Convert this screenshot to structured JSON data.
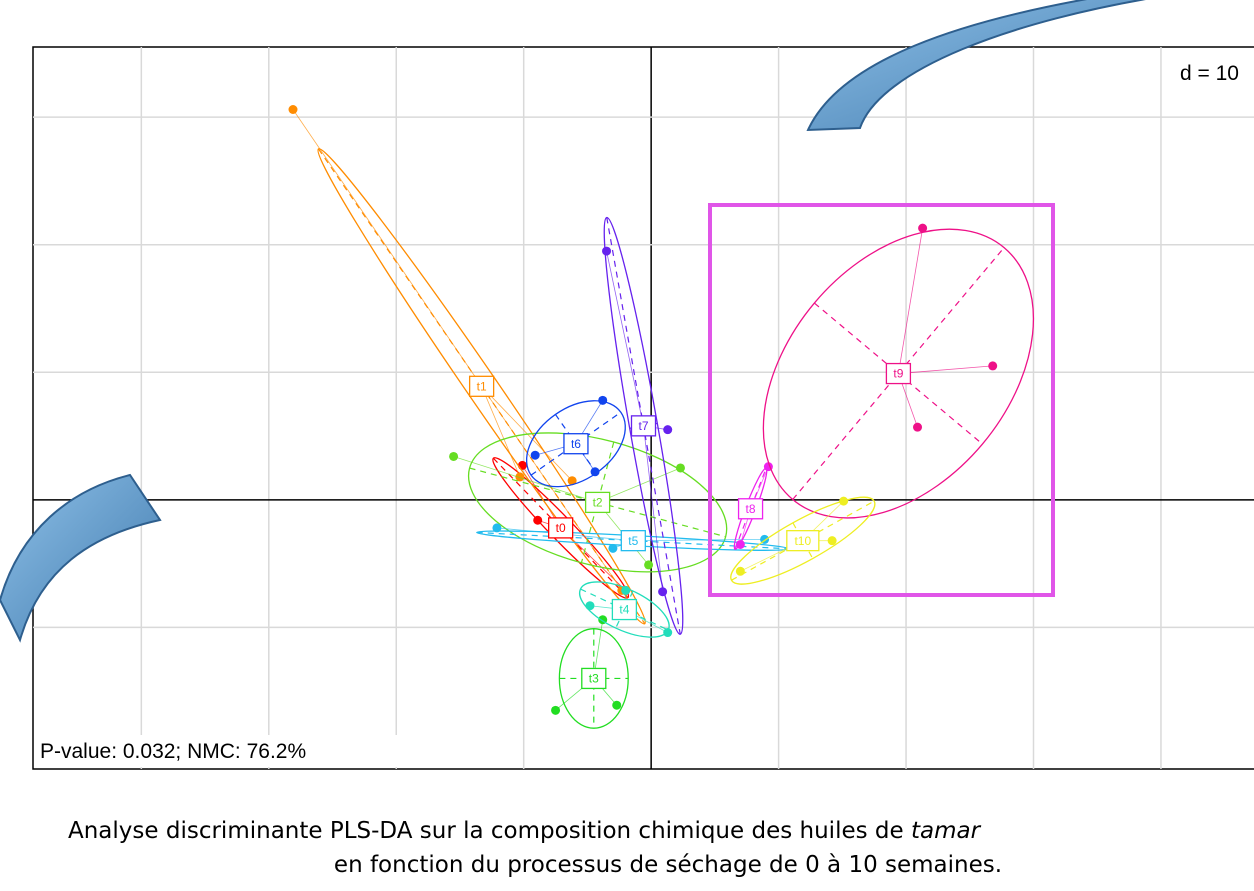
{
  "chart_data": {
    "type": "scatter",
    "grid_label": "d = 10",
    "annotation": "P-value: 0.032; NMC: 76.2%",
    "caption_line1": "Analyse discriminante PLS-DA sur la composition chimique des huiles de ",
    "caption_species": "tamar",
    "caption_line2": "en fonction du processus de séchage de 0 à 10 semaines.",
    "xlim": [
      -48.5,
      47.3
    ],
    "ylim": [
      -21.1,
      35.5
    ],
    "grid_x": [
      -40,
      -30,
      -20,
      -10,
      0,
      10,
      20,
      30,
      40
    ],
    "grid_y": [
      -10,
      0,
      10,
      20,
      30
    ],
    "groups": [
      {
        "name": "t0",
        "color": "#ff0000",
        "center": [
          -7.1,
          -2.2
        ],
        "ellipse": {
          "rx": 7.6,
          "ry": 0.9,
          "angle": -46
        },
        "points": [
          [
            -10.1,
            2.7
          ],
          [
            -8.9,
            -1.6
          ],
          [
            -2.0,
            -7.1
          ]
        ]
      },
      {
        "name": "t1",
        "color": "#ff8c00",
        "center": [
          -13.3,
          8.9
        ],
        "ellipse": {
          "rx": 22.6,
          "ry": 1.2,
          "angle": -55.5
        },
        "points": [
          [
            -28.1,
            30.6
          ],
          [
            -10.3,
            1.8
          ],
          [
            -6.2,
            1.5
          ],
          [
            -2.3,
            -7.1
          ]
        ]
      },
      {
        "name": "t2",
        "color": "#66dd22",
        "center": [
          -4.2,
          -0.2
        ],
        "ellipse": {
          "rx": 10.4,
          "ry": 4.9,
          "angle": -15
        },
        "points": [
          [
            -15.5,
            3.4
          ],
          [
            2.3,
            2.5
          ],
          [
            -0.2,
            -5.1
          ]
        ]
      },
      {
        "name": "t3",
        "color": "#22dd22",
        "center": [
          -4.5,
          -14.0
        ],
        "ellipse": {
          "rx": 2.7,
          "ry": 3.9,
          "angle": 0
        },
        "points": [
          [
            -7.5,
            -16.5
          ],
          [
            -2.7,
            -16.1
          ],
          [
            -3.8,
            -9.4
          ]
        ]
      },
      {
        "name": "t4",
        "color": "#22ddbb",
        "center": [
          -2.1,
          -8.6
        ],
        "ellipse": {
          "rx": 3.8,
          "ry": 1.6,
          "angle": -25
        },
        "points": [
          [
            -4.8,
            -8.3
          ],
          [
            1.3,
            -10.4
          ],
          [
            -2.0,
            -7.1
          ]
        ]
      },
      {
        "name": "t5",
        "color": "#22bbee",
        "center": [
          -1.4,
          -3.2
        ],
        "ellipse": {
          "rx": 12.3,
          "ry": 0.4,
          "angle": -3
        },
        "points": [
          [
            -12.1,
            -2.2
          ],
          [
            8.9,
            -3.1
          ],
          [
            -3.0,
            -3.8
          ]
        ]
      },
      {
        "name": "t6",
        "color": "#1144ee",
        "center": [
          -5.9,
          4.4
        ],
        "ellipse": {
          "rx": 4.3,
          "ry": 2.8,
          "angle": 35
        },
        "points": [
          [
            -3.8,
            7.8
          ],
          [
            -9.1,
            3.5
          ],
          [
            -4.4,
            2.2
          ]
        ]
      },
      {
        "name": "t7",
        "color": "#6622ee",
        "center": [
          -0.6,
          5.8
        ],
        "ellipse": {
          "rx": 16.6,
          "ry": 1.1,
          "angle": -80
        },
        "points": [
          [
            -3.5,
            19.5
          ],
          [
            1.3,
            5.5
          ],
          [
            0.9,
            -7.2
          ]
        ]
      },
      {
        "name": "t8",
        "color": "#ee22ee",
        "center": [
          7.8,
          -0.7
        ],
        "ellipse": {
          "rx": 3.4,
          "ry": 0.4,
          "angle": 69
        },
        "points": [
          [
            9.2,
            2.6
          ],
          [
            7.0,
            -3.5
          ]
        ]
      },
      {
        "name": "t9",
        "color": "#ee1188",
        "center": [
          19.4,
          9.9
        ],
        "ellipse": {
          "rx": 12.9,
          "ry": 8.6,
          "angle": 50
        },
        "points": [
          [
            21.3,
            21.3
          ],
          [
            26.8,
            10.5
          ],
          [
            20.9,
            5.7
          ]
        ]
      },
      {
        "name": "t10",
        "color": "#eeee22",
        "center": [
          11.9,
          -3.2
        ],
        "ellipse": {
          "rx": 6.4,
          "ry": 1.6,
          "angle": 29
        },
        "points": [
          [
            15.1,
            -0.1
          ],
          [
            14.2,
            -3.2
          ],
          [
            7.0,
            -5.6
          ]
        ]
      }
    ]
  }
}
